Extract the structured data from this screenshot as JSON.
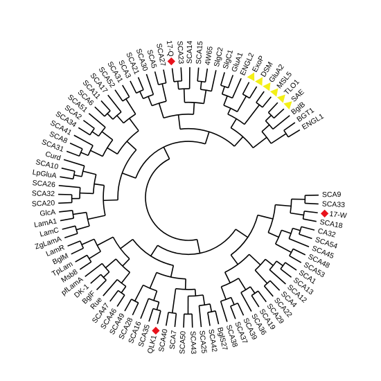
{
  "leaves": [
    "SCA9",
    "SCA33",
    "17-W",
    "SCA18",
    "CA32",
    "SCA54",
    "SCA45",
    "SCA48",
    "SCA53",
    "SCA1",
    "SCA13",
    "SCA12",
    "SCA4",
    "SCA22",
    "SCA29",
    "SCA19",
    "SCA36",
    "SCA39",
    "SCA37",
    "SCA38",
    "BglS27",
    "SCA42",
    "SCA25",
    "SCA43",
    "SCA50",
    "SCA7",
    "SCA40",
    "QLK1",
    "SCA35",
    "SCA16",
    "SCA28",
    "SCA49",
    "SCA46",
    "SCA47",
    "Rue",
    "BglF",
    "DK-1",
    "pfLamA",
    "Msb8",
    "TpLam",
    "BglM",
    "LamR",
    "ZgLamA",
    "LamC",
    "LamA1",
    "GlcA",
    "SCA20",
    "SCA32",
    "SCA26",
    "LpGluA",
    "SCA10",
    "Curd",
    "SCA31",
    "SCA8",
    "SCA41",
    "SCA34",
    "SCA2",
    "SCA51",
    "SCA6",
    "SCA11",
    "SCA17",
    "SCA52",
    "SCA31",
    "SCA3",
    "SCA21",
    "SCA30",
    "SCA5",
    "SCA27",
    "17-Q",
    "SCA23",
    "SCA14",
    "SCA15",
    "4W65",
    "SlgC2",
    "SlgC1",
    "GluA1",
    "ENGL2",
    "ExoP",
    "DSM",
    "GluA2",
    "MSL5",
    "TLO1",
    "SAE",
    "BglB",
    "BGT1",
    "ENGL1"
  ]
}
